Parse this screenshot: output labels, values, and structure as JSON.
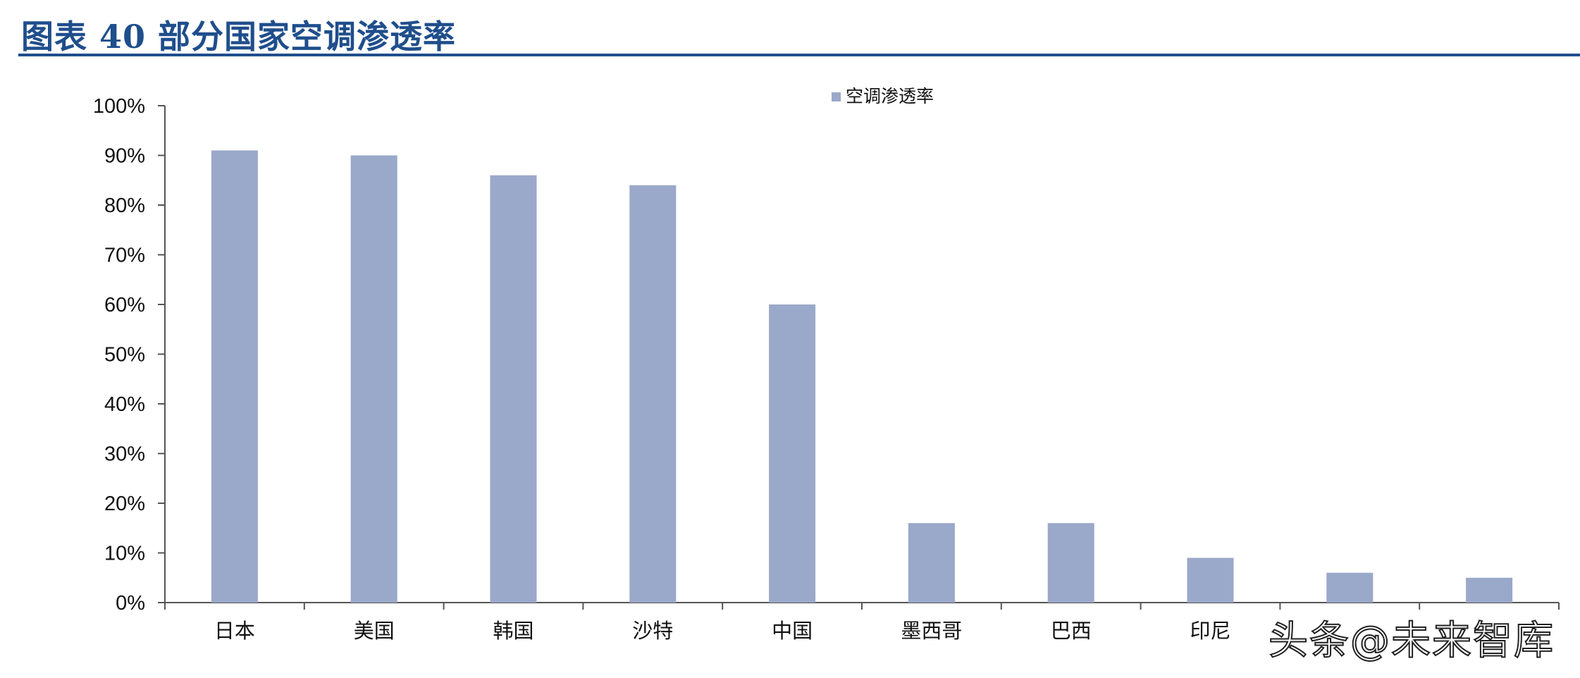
{
  "header": {
    "title": "图表 40    部分国家空调渗透率"
  },
  "colors": {
    "title": "#1f4e8c",
    "bar": "#9aa8c9",
    "axis": "#555555",
    "text": "#111111"
  },
  "watermark": {
    "text": "头条@未来智库"
  },
  "chart_data": {
    "type": "bar",
    "title": "",
    "xlabel": "",
    "ylabel": "",
    "categories": [
      "日本",
      "美国",
      "韩国",
      "沙特",
      "中国",
      "墨西哥",
      "巴西",
      "印尼",
      "",
      ""
    ],
    "series": [
      {
        "name": "空调渗透率",
        "values": [
          91,
          90,
          86,
          84,
          60,
          16,
          16,
          9,
          6,
          5
        ]
      }
    ],
    "ylim": [
      0,
      100
    ],
    "yticks": [
      "0%",
      "10%",
      "20%",
      "30%",
      "40%",
      "50%",
      "60%",
      "70%",
      "80%",
      "90%",
      "100%"
    ],
    "value_unit": "%",
    "grid": false,
    "legend_position": "top-center"
  }
}
